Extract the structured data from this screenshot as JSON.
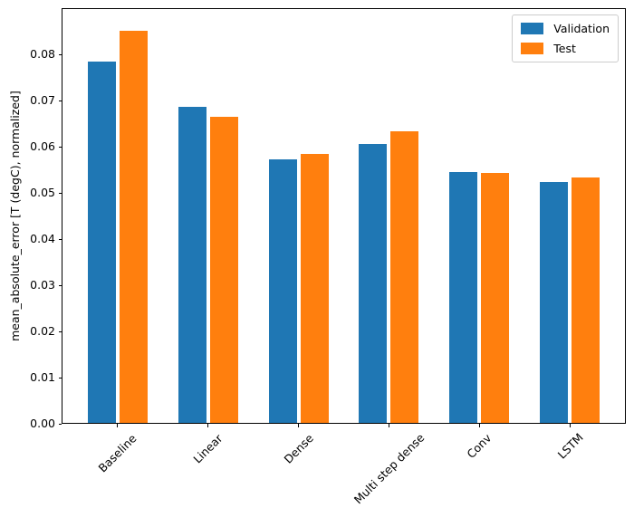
{
  "chart_data": {
    "type": "bar",
    "title": "",
    "xlabel": "",
    "ylabel": "mean_absolute_error [T (degC), normalized]",
    "categories": [
      "Baseline",
      "Linear",
      "Dense",
      "Multi step dense",
      "Conv",
      "LSTM"
    ],
    "series": [
      {
        "name": "Validation",
        "color": "#1f77b4",
        "values": [
          0.0785,
          0.0687,
          0.0573,
          0.0607,
          0.0545,
          0.0524
        ]
      },
      {
        "name": "Test",
        "color": "#ff7f0e",
        "values": [
          0.0852,
          0.0665,
          0.0585,
          0.0635,
          0.0543,
          0.0534
        ]
      }
    ],
    "ylim": [
      0,
      0.09
    ],
    "ytick_values": [
      0,
      0.01,
      0.02,
      0.03,
      0.04,
      0.05,
      0.06,
      0.07,
      0.08
    ],
    "ytick_labels": [
      "0.00",
      "0.01",
      "0.02",
      "0.03",
      "0.04",
      "0.05",
      "0.06",
      "0.07",
      "0.08"
    ],
    "xtick_rotation_deg": 45,
    "grid": false,
    "legend": {
      "position": "upper right",
      "entries": [
        "Validation",
        "Test"
      ]
    }
  }
}
